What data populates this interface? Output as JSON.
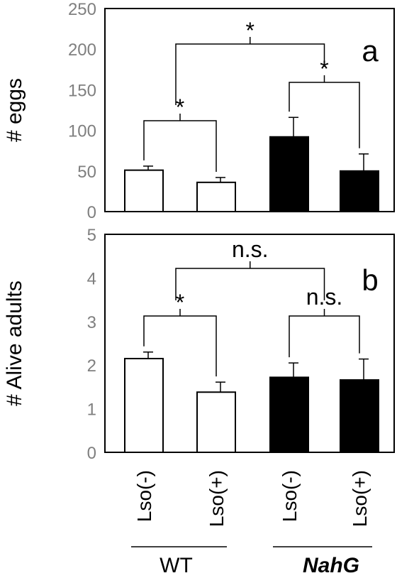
{
  "chart_data": [
    {
      "type": "bar",
      "panel_label": "a",
      "ylabel": "# eggs",
      "ylim": [
        0,
        250
      ],
      "yticks": [
        "0",
        "50",
        "100",
        "150",
        "200",
        "250"
      ],
      "categories": [
        "Lso(-)",
        "Lso(+)",
        "Lso(-)",
        "Lso(+)"
      ],
      "values": [
        51,
        36,
        92,
        50
      ],
      "errors": [
        5,
        6,
        24,
        21
      ],
      "bar_colors": [
        "#ffffff",
        "#ffffff",
        "#000000",
        "#000000"
      ],
      "comparisons": [
        {
          "from": 0,
          "to": 1,
          "label": "*",
          "level": 1
        },
        {
          "from": 2,
          "to": 3,
          "label": "*",
          "level": 1
        },
        {
          "from": "0-1",
          "to": "2-3",
          "label": "*",
          "level": 2
        }
      ]
    },
    {
      "type": "bar",
      "panel_label": "b",
      "ylabel": "# Alive adults",
      "ylim": [
        0,
        5
      ],
      "yticks": [
        "0",
        "1",
        "2",
        "3",
        "4",
        "5"
      ],
      "categories": [
        "Lso(-)",
        "Lso(+)",
        "Lso(-)",
        "Lso(+)"
      ],
      "values": [
        2.15,
        1.38,
        1.72,
        1.66
      ],
      "errors": [
        0.15,
        0.23,
        0.33,
        0.48
      ],
      "bar_colors": [
        "#ffffff",
        "#ffffff",
        "#000000",
        "#000000"
      ],
      "comparisons": [
        {
          "from": 0,
          "to": 1,
          "label": "*",
          "level": 1
        },
        {
          "from": 2,
          "to": 3,
          "label": "n.s.",
          "level": 1
        },
        {
          "from": "0-1",
          "to": "2-3",
          "label": "n.s.",
          "level": 2
        }
      ]
    }
  ],
  "x_categories": [
    "Lso(-)",
    "Lso(+)",
    "Lso(-)",
    "Lso(+)"
  ],
  "groups": [
    {
      "label": "WT",
      "italic": false
    },
    {
      "label": "NahG",
      "italic": true
    }
  ]
}
